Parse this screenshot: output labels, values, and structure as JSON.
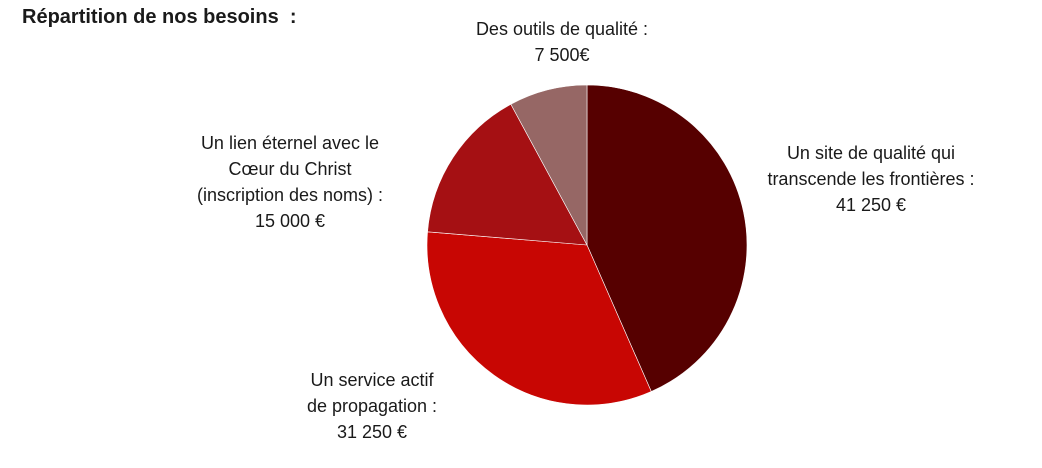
{
  "title": "Répartition de nos besoins  :",
  "chart_data": {
    "type": "pie",
    "start": "12 o'clock, clockwise",
    "slices": [
      {
        "label_lines": [
          "Un site de qualité qui",
          "transcende les frontières :"
        ],
        "value_text": "41 250 €",
        "value": 41250,
        "color": "#560000"
      },
      {
        "label_lines": [
          "Un service actif",
          "de propagation :"
        ],
        "value_text": "31 250 €",
        "value": 31250,
        "color": "#c80603"
      },
      {
        "label_lines": [
          "Un lien éternel avec le",
          "Cœur du Christ",
          "(inscription des noms) :"
        ],
        "value_text": "15 000 €",
        "value": 15000,
        "color": "#a51013"
      },
      {
        "label_lines": [
          "Des outils de qualité :"
        ],
        "value_text": "7 500€",
        "value": 7500,
        "color": "#966765"
      }
    ]
  }
}
